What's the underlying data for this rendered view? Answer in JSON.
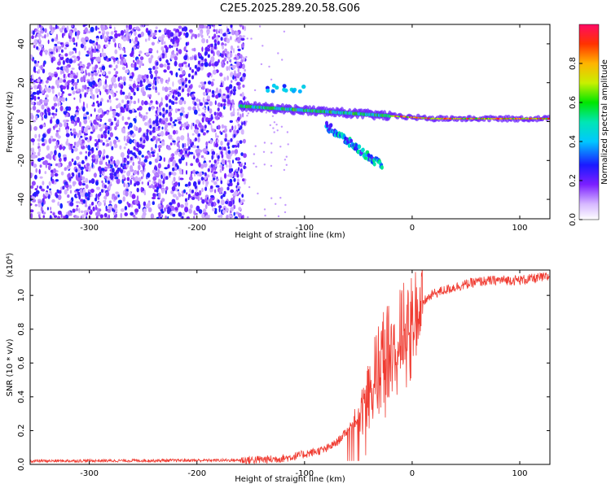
{
  "title": "C2E5.2025.289.20.58.G06",
  "chart_data": [
    {
      "type": "heatmap",
      "name": "spectrogram",
      "xlabel": "Height of straight line (km)",
      "ylabel": "Frequency (Hz)",
      "xlim": [
        -355,
        128
      ],
      "ylim": [
        -50,
        50
      ],
      "xticks": [
        -300,
        -200,
        -100,
        0,
        100
      ],
      "yticks": [
        -40,
        -20,
        0,
        20,
        40
      ],
      "colorbar": {
        "label": "Normalized spectral amplitude",
        "range": [
          0.0,
          1.0
        ],
        "ticks": [
          0.0,
          0.2,
          0.4,
          0.6,
          0.8
        ]
      },
      "features": {
        "noise_region_x": [
          -355,
          -155
        ],
        "carrier": {
          "x": [
            -160,
            128
          ],
          "freq_start": 8,
          "freq_end": 1.5,
          "amplitude": 0.75
        },
        "secondary_branch": {
          "x": [
            -80,
            -28
          ],
          "freq_start": -2,
          "freq_end": -23
        },
        "upper_branch": {
          "x": [
            -135,
            -100
          ],
          "freq": 17
        }
      }
    },
    {
      "type": "line",
      "name": "snr",
      "xlabel": "Height of straight line (km)",
      "ylabel": "SNR (10 * v/v)",
      "yscale_label": "(x10⁴)",
      "xlim": [
        -355,
        128
      ],
      "ylim": [
        0.0,
        1.15
      ],
      "xticks": [
        -300,
        -200,
        -100,
        0,
        100
      ],
      "yticks": [
        0.0,
        0.2,
        0.4,
        0.6,
        0.8,
        1.0
      ],
      "color": "#f03c32",
      "profile": [
        [
          -355,
          0.02
        ],
        [
          -160,
          0.025
        ],
        [
          -130,
          0.03
        ],
        [
          -115,
          0.04
        ],
        [
          -100,
          0.06
        ],
        [
          -80,
          0.09
        ],
        [
          -70,
          0.13
        ],
        [
          -60,
          0.2
        ],
        [
          -50,
          0.3
        ],
        [
          -40,
          0.45
        ],
        [
          -30,
          0.6
        ],
        [
          -20,
          0.7
        ],
        [
          -10,
          0.78
        ],
        [
          0,
          0.88
        ],
        [
          10,
          0.96
        ],
        [
          20,
          1.01
        ],
        [
          40,
          1.05
        ],
        [
          60,
          1.08
        ],
        [
          80,
          1.09
        ],
        [
          100,
          1.09
        ],
        [
          128,
          1.11
        ]
      ]
    }
  ]
}
